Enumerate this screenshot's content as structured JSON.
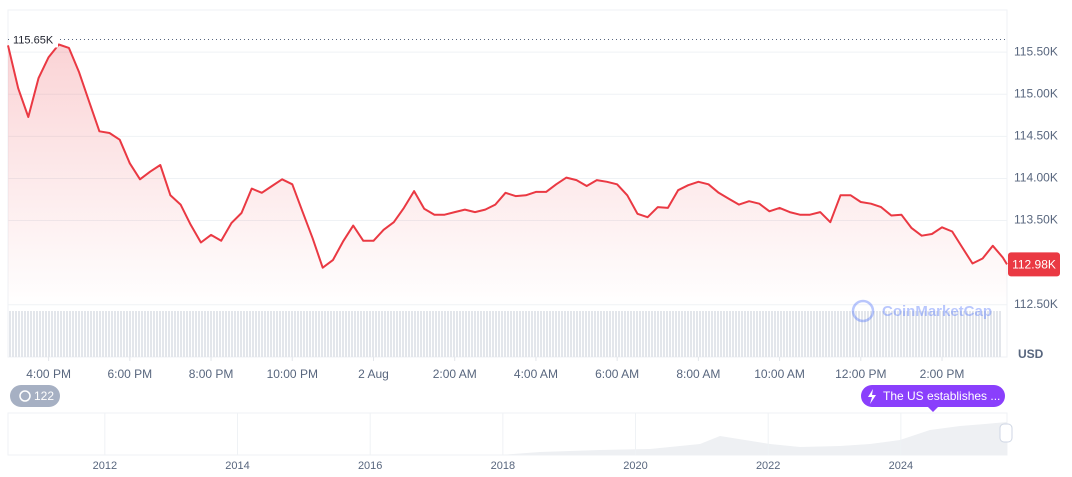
{
  "chart_data": {
    "type": "line",
    "color": "#ea3943",
    "fill": true,
    "grid": true,
    "x": [
      15,
      15.25,
      15.5,
      15.75,
      16,
      16.25,
      16.5,
      16.75,
      17,
      17.25,
      17.5,
      17.75,
      18,
      18.25,
      18.5,
      18.75,
      19,
      19.25,
      19.5,
      19.75,
      20,
      20.25,
      20.5,
      20.75,
      21,
      21.25,
      21.5,
      21.75,
      22,
      22.25,
      22.5,
      22.75,
      23,
      23.25,
      23.5,
      23.75,
      24,
      24.25,
      24.5,
      24.75,
      25,
      25.25,
      25.5,
      25.75,
      26,
      26.25,
      26.5,
      26.75,
      27,
      27.25,
      27.5,
      27.75,
      28,
      28.25,
      28.5,
      28.75,
      29,
      29.25,
      29.5,
      29.75,
      30,
      30.25,
      30.5,
      30.75,
      31,
      31.25,
      31.5,
      31.75,
      32,
      32.25,
      32.5,
      32.75,
      33,
      33.25,
      33.5,
      33.75,
      34,
      34.25,
      34.5,
      34.75,
      35,
      35.25,
      35.5,
      35.75,
      36,
      36.25,
      36.5,
      36.75,
      37,
      37.25,
      37.5,
      37.75,
      38,
      38.25,
      38.5,
      38.75,
      39,
      39.25,
      39.5,
      39.6
    ],
    "values": [
      115580,
      115070,
      114730,
      115190,
      115440,
      115590,
      115550,
      115260,
      114910,
      114560,
      114540,
      114460,
      114180,
      113990,
      114080,
      114160,
      113800,
      113690,
      113450,
      113240,
      113330,
      113260,
      113470,
      113590,
      113880,
      113830,
      113910,
      113990,
      113930,
      113610,
      113290,
      112940,
      113030,
      113250,
      113440,
      113260,
      113260,
      113390,
      113480,
      113650,
      113850,
      113640,
      113570,
      113570,
      113600,
      113630,
      113600,
      113630,
      113690,
      113830,
      113790,
      113800,
      113840,
      113840,
      113930,
      114010,
      113980,
      113910,
      113980,
      113960,
      113930,
      113800,
      113580,
      113540,
      113660,
      113650,
      113860,
      113920,
      113960,
      113930,
      113830,
      113760,
      113690,
      113730,
      113700,
      113610,
      113650,
      113600,
      113570,
      113570,
      113600,
      113480,
      113800,
      113800,
      113720,
      113700,
      113660,
      113560,
      113570,
      113410,
      113320,
      113340,
      113420,
      113370,
      113180,
      112990,
      113050,
      113200,
      113060,
      112980
    ],
    "xlim": [
      15,
      39.6
    ],
    "ylim": [
      111880,
      116000
    ],
    "xticks": [
      {
        "value": 16,
        "label": "4:00 PM"
      },
      {
        "value": 18,
        "label": "6:00 PM"
      },
      {
        "value": 20,
        "label": "8:00 PM"
      },
      {
        "value": 22,
        "label": "10:00 PM"
      },
      {
        "value": 24,
        "label": "2 Aug"
      },
      {
        "value": 26,
        "label": "2:00 AM"
      },
      {
        "value": 28,
        "label": "4:00 AM"
      },
      {
        "value": 30,
        "label": "6:00 AM"
      },
      {
        "value": 32,
        "label": "8:00 AM"
      },
      {
        "value": 34,
        "label": "10:00 AM"
      },
      {
        "value": 36,
        "label": "12:00 PM"
      },
      {
        "value": 38,
        "label": "2:00 PM"
      }
    ],
    "yticks": [
      {
        "value": 112500,
        "label": "112.50K"
      },
      {
        "value": 113500,
        "label": "113.50K"
      },
      {
        "value": 114000,
        "label": "114.00K"
      },
      {
        "value": 114500,
        "label": "114.50K"
      },
      {
        "value": 115000,
        "label": "115.00K"
      },
      {
        "value": 115500,
        "label": "115.50K"
      }
    ],
    "y_axis_label": "USD",
    "reference_line": {
      "value": 115650,
      "label": "115.65K"
    },
    "current_price": {
      "value": 112980,
      "label": "112.98K"
    }
  },
  "events": {
    "count": 122,
    "label": "The US establishes ..."
  },
  "watermark": "CoinMarketCap",
  "navigator": {
    "xlim": [
      2010.54,
      2025.6
    ],
    "xticks": [
      2012,
      2014,
      2016,
      2018,
      2020,
      2022,
      2024
    ]
  }
}
